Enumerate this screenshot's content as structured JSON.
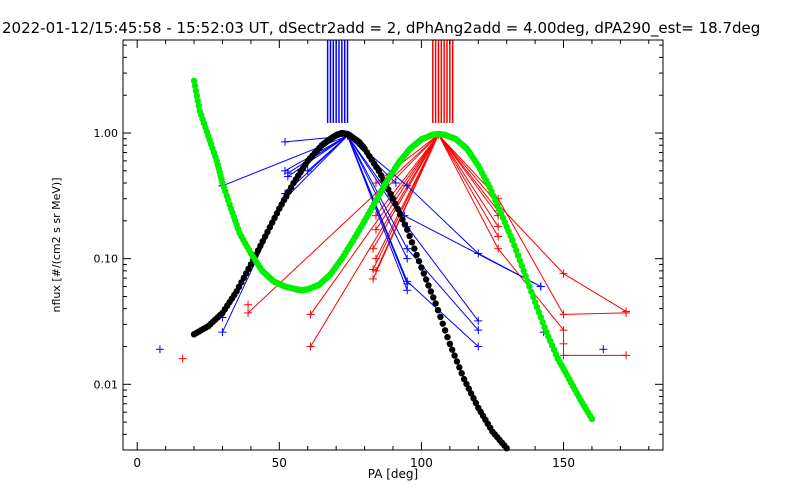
{
  "chart_data": {
    "type": "scatter",
    "title": "2022-01-12/15:45:58 - 15:52:03 UT, dSectr2add = 2, dPhAng2add = 4.00deg, dPA290_est=  18.7deg",
    "xlabel": "PA [deg]",
    "ylabel": "nflux [#/(cm2 s sr MeV)]",
    "x_range": [
      -5,
      185
    ],
    "y_range": [
      0.003,
      5.5
    ],
    "y_scale": "log",
    "x_ticks": [
      0,
      50,
      100,
      150
    ],
    "x_tick_labels": [
      "0",
      "50",
      "100",
      "150"
    ],
    "y_ticks": [
      0.01,
      0.1,
      1.0
    ],
    "y_tick_labels": [
      "0.01",
      "0.10",
      "1.00"
    ],
    "grid": false,
    "colors": {
      "blue": "#0000ff",
      "red": "#ff0000",
      "black": "#000000",
      "green": "#00ee00"
    },
    "blue_direction_lines_pa": [
      67,
      68,
      69,
      70,
      71,
      72,
      73,
      74
    ],
    "red_direction_lines_pa": [
      104,
      105,
      106,
      107,
      108,
      109,
      110,
      111
    ],
    "blue_peak": [
      74,
      0.95
    ],
    "red_peak": [
      106,
      0.97
    ],
    "blue_branches": [
      [
        [
          30,
          0.38
        ]
      ],
      [
        [
          52,
          0.85
        ]
      ],
      [
        [
          52,
          0.5
        ]
      ],
      [
        [
          53,
          0.45
        ]
      ],
      [
        [
          52,
          0.33
        ],
        [
          30,
          0.034
        ]
      ],
      [
        [
          52,
          0.3
        ],
        [
          30,
          0.026
        ]
      ],
      [
        [
          53,
          0.48
        ]
      ],
      [
        [
          60,
          0.5
        ]
      ],
      [
        [
          95,
          0.38
        ],
        [
          120,
          0.11
        ],
        [
          142,
          0.06
        ]
      ],
      [
        [
          94,
          0.22
        ],
        [
          142,
          0.06
        ]
      ],
      [
        [
          95,
          0.18
        ],
        [
          120,
          0.032
        ]
      ],
      [
        [
          95,
          0.12
        ],
        [
          120,
          0.027
        ]
      ],
      [
        [
          95,
          0.1
        ]
      ],
      [
        [
          95,
          0.066
        ],
        [
          120,
          0.02
        ]
      ],
      [
        [
          95,
          0.063
        ]
      ],
      [
        [
          95,
          0.056
        ]
      ],
      [
        [
          91,
          0.4
        ]
      ]
    ],
    "blue_isolated": [
      [
        8,
        0.019
      ],
      [
        143,
        0.026
      ],
      [
        164,
        0.019
      ]
    ],
    "red_branches": [
      [
        [
          39,
          0.037
        ]
      ],
      [
        [
          61,
          0.036
        ]
      ],
      [
        [
          61,
          0.02
        ]
      ],
      [
        [
          84,
          0.3
        ]
      ],
      [
        [
          84,
          0.22
        ]
      ],
      [
        [
          84,
          0.17
        ]
      ],
      [
        [
          83,
          0.12
        ]
      ],
      [
        [
          84,
          0.1
        ]
      ],
      [
        [
          83,
          0.082
        ]
      ],
      [
        [
          84,
          0.08
        ]
      ],
      [
        [
          83,
          0.069
        ]
      ],
      [
        [
          84,
          0.4
        ]
      ],
      [
        [
          127,
          0.3
        ],
        [
          150,
          0.036
        ],
        [
          172,
          0.037
        ]
      ],
      [
        [
          127,
          0.27
        ],
        [
          150,
          0.076
        ],
        [
          172,
          0.038
        ]
      ],
      [
        [
          127,
          0.24
        ]
      ],
      [
        [
          127,
          0.22
        ]
      ],
      [
        [
          127,
          0.18
        ]
      ],
      [
        [
          127,
          0.15
        ]
      ],
      [
        [
          127,
          0.12
        ],
        [
          150,
          0.027
        ],
        [
          150,
          0.017
        ],
        [
          172,
          0.017
        ]
      ]
    ],
    "red_isolated": [
      [
        16,
        0.016
      ],
      [
        39,
        0.043
      ],
      [
        150,
        0.021
      ]
    ],
    "black_curve": {
      "x": [
        20,
        25,
        30,
        35,
        40,
        45,
        50,
        55,
        60,
        65,
        68,
        70,
        72,
        74,
        75,
        78,
        80,
        85,
        90,
        95,
        100,
        105,
        110,
        115,
        120,
        125,
        130
      ],
      "y": [
        0.025,
        0.029,
        0.037,
        0.055,
        0.09,
        0.15,
        0.25,
        0.4,
        0.6,
        0.8,
        0.9,
        0.96,
        1.0,
        0.98,
        0.95,
        0.85,
        0.75,
        0.5,
        0.3,
        0.17,
        0.085,
        0.044,
        0.021,
        0.011,
        0.0065,
        0.0042,
        0.0031
      ]
    },
    "green_curve": {
      "x": [
        20,
        22,
        25,
        28,
        30,
        33,
        36,
        40,
        44,
        48,
        52,
        56,
        58,
        60,
        64,
        68,
        72,
        76,
        80,
        84,
        88,
        92,
        96,
        100,
        104,
        106,
        108,
        112,
        116,
        120,
        124,
        128,
        132,
        136,
        140,
        144,
        148,
        152,
        156,
        160
      ],
      "y": [
        2.6,
        1.5,
        0.95,
        0.6,
        0.4,
        0.25,
        0.16,
        0.11,
        0.08,
        0.066,
        0.06,
        0.057,
        0.056,
        0.057,
        0.062,
        0.075,
        0.1,
        0.14,
        0.2,
        0.29,
        0.42,
        0.58,
        0.75,
        0.89,
        0.97,
        0.98,
        0.97,
        0.9,
        0.75,
        0.55,
        0.37,
        0.23,
        0.14,
        0.08,
        0.045,
        0.026,
        0.016,
        0.011,
        0.0075,
        0.0053
      ]
    }
  }
}
